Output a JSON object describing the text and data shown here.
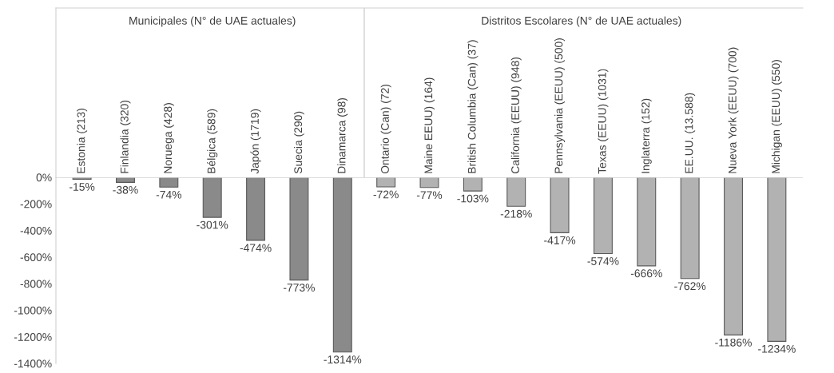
{
  "chart_data": {
    "type": "bar",
    "categories": [
      "Estonia (213)",
      "Finlandia (320)",
      "Noruega (428)",
      "Bélgica (589)",
      "Japón (1719)",
      "Suecia (290)",
      "Dinamarca (98)",
      "Ontario (Can) (72)",
      "Maine EEUU) (164)",
      "British Columbia (Can) (37)",
      "California (EEUU) (948)",
      "Pennsylvania (EEUU) (500)",
      "Texas (EEUU) (1031)",
      "Inglaterra (152)",
      "EE.UU. (13.588)",
      "Nueva York (EEUU) (700)",
      "Michigan (EEUU) (550)"
    ],
    "values": [
      -15,
      -38,
      -74,
      -301,
      -474,
      -773,
      -1314,
      -72,
      -77,
      -103,
      -218,
      -417,
      -574,
      -666,
      -762,
      -1186,
      -1234
    ],
    "value_labels": [
      "-15%",
      "-38%",
      "-74%",
      "-301%",
      "-474%",
      "-773%",
      "-1314%",
      "-72%",
      "-77%",
      "-103%",
      "-218%",
      "-417%",
      "-574%",
      "-666%",
      "-762%",
      "-1186%",
      "-1234%"
    ],
    "colors": [
      "#8a8a8a",
      "#8a8a8a",
      "#8a8a8a",
      "#8a8a8a",
      "#8a8a8a",
      "#8a8a8a",
      "#8a8a8a",
      "#b2b2b2",
      "#b2b2b2",
      "#b2b2b2",
      "#b2b2b2",
      "#b2b2b2",
      "#b2b2b2",
      "#b2b2b2",
      "#b2b2b2",
      "#b2b2b2",
      "#b2b2b2"
    ],
    "annotations": [
      "Municipales (N° de UAE actuales)",
      "Distritos Escolares (N° de UAE actuales)"
    ],
    "ylim": [
      -1400,
      0
    ],
    "yticks": [
      {
        "value": 0,
        "label": "0%"
      },
      {
        "value": -200,
        "label": "-200%"
      },
      {
        "value": -400,
        "label": "-400%"
      },
      {
        "value": -600,
        "label": "-600%"
      },
      {
        "value": -800,
        "label": "-800%"
      },
      {
        "value": -1000,
        "label": "-1000%"
      },
      {
        "value": -1200,
        "label": "-1200%"
      },
      {
        "value": -1400,
        "label": "-1400%"
      }
    ],
    "grid": false,
    "legend": false
  }
}
